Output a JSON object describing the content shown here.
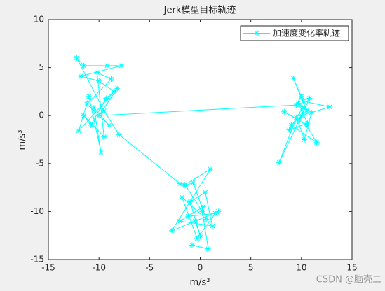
{
  "chart_data": {
    "type": "line",
    "title": "Jerk模型目标轨迹",
    "x_label": "m/s³",
    "y_label": "m/s³",
    "xlim": [
      -15,
      15
    ],
    "ylim": [
      -15,
      10
    ],
    "xticks": [
      -15,
      -10,
      -5,
      0,
      5,
      10,
      15
    ],
    "yticks": [
      -15,
      -10,
      -5,
      0,
      5,
      10
    ],
    "legend": "northeast",
    "watermark": "CSDN @脑壳二",
    "x": [
      -0.8,
      0.8,
      0.2,
      -1.5,
      1,
      -2.8,
      1.8,
      -0.5,
      0,
      -1,
      0.5,
      1.2,
      -2,
      0.3,
      -1.2,
      1.5,
      -0.3,
      -1.8,
      0.6,
      -0.7,
      -1.5,
      -2,
      -8,
      -9.5,
      -12.2,
      -11.5,
      -9.2,
      -7.8,
      -11.8,
      -10,
      -8.5,
      -12,
      -11,
      -9.8,
      -10.5,
      -9,
      -11.2,
      -8.8,
      -10.2,
      -9.5,
      -11.5,
      -10.8,
      -9.3,
      -8.2,
      -10,
      9.5,
      10,
      10.5,
      9.2,
      10.2,
      12.8,
      10,
      9,
      11.5,
      10.5,
      8.3,
      9.8,
      10.8,
      7.8,
      9.5,
      10.3,
      11,
      9.7,
      10.6,
      8.8,
      10.1
    ],
    "series": [
      {
        "name": "加速度变化率轨迹",
        "color": "#00ffff",
        "values": [
          -13.5,
          -13.9,
          -10,
          -7.2,
          -5.6,
          -12,
          -10,
          -11,
          -12.5,
          -9,
          -8,
          -11.5,
          -11,
          -9.5,
          -10.5,
          -10.2,
          -12.8,
          -8.5,
          -10.8,
          -7,
          -7.3,
          -7.1,
          -2,
          0.5,
          6,
          5.2,
          5.2,
          5.2,
          4.1,
          3.6,
          2.5,
          -1.6,
          2,
          -3.8,
          0.8,
          -1,
          1.2,
          3.8,
          4.5,
          -2.2,
          0,
          -1,
          1.8,
          2.8,
          0,
          1.1,
          2,
          0.5,
          3.9,
          1.5,
          0.9,
          0,
          -1,
          -2.8,
          -1,
          0.4,
          -0.5,
          1.8,
          -4.9,
          -0.2,
          -2.5,
          0.3,
          1.3,
          -0.8,
          -1.5,
          0.8
        ]
      }
    ]
  }
}
